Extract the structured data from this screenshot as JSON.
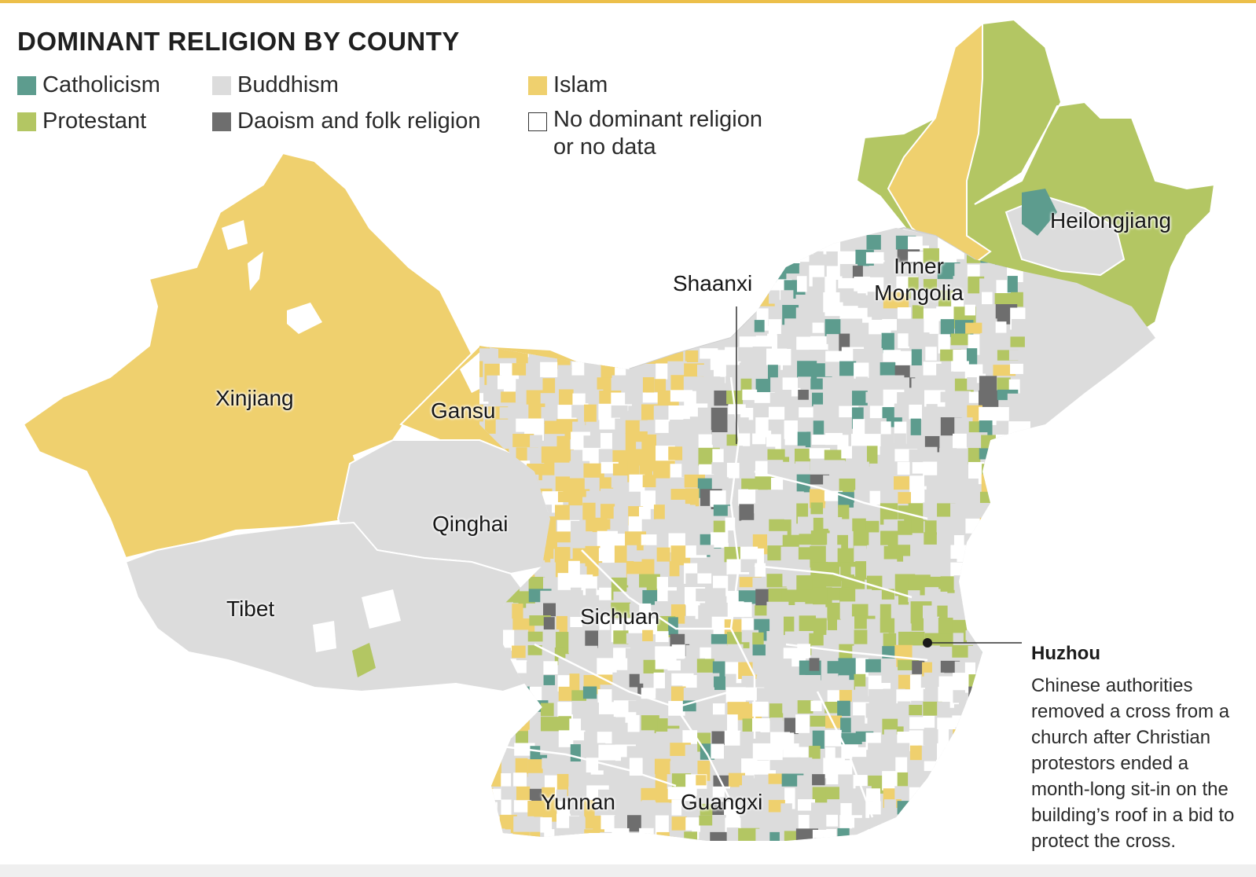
{
  "title": "DOMINANT RELIGION BY COUNTY",
  "legend": [
    {
      "key": "catholicism",
      "label": "Catholicism",
      "color": "#5d9c8e"
    },
    {
      "key": "buddhism",
      "label": "Buddhism",
      "color": "#dcdcdc"
    },
    {
      "key": "islam",
      "label": "Islam",
      "color": "#efd06e"
    },
    {
      "key": "protestant",
      "label": "Protestant",
      "color": "#b3c663"
    },
    {
      "key": "daoism",
      "label": "Daoism and folk religion",
      "color": "#6e6e6e"
    },
    {
      "key": "none",
      "label": "No dominant religion",
      "label2": "or no data",
      "color": "#ffffff"
    }
  ],
  "regions": {
    "xinjiang": "Xinjiang",
    "gansu": "Gansu",
    "qinghai": "Qinghai",
    "tibet": "Tibet",
    "sichuan": "Sichuan",
    "shaanxi": "Shaanxi",
    "inner_mongolia_1": "Inner",
    "inner_mongolia_2": "Mongolia",
    "heilongjiang": "Heilongjiang",
    "yunnan": "Yunnan",
    "guangxi": "Guangxi"
  },
  "callout": {
    "title": "Huzhou",
    "text": "Chinese authorities removed a cross from a church after Christian protestors ended a month-long sit-in on the building’s roof in a bid to protect the cross."
  }
}
